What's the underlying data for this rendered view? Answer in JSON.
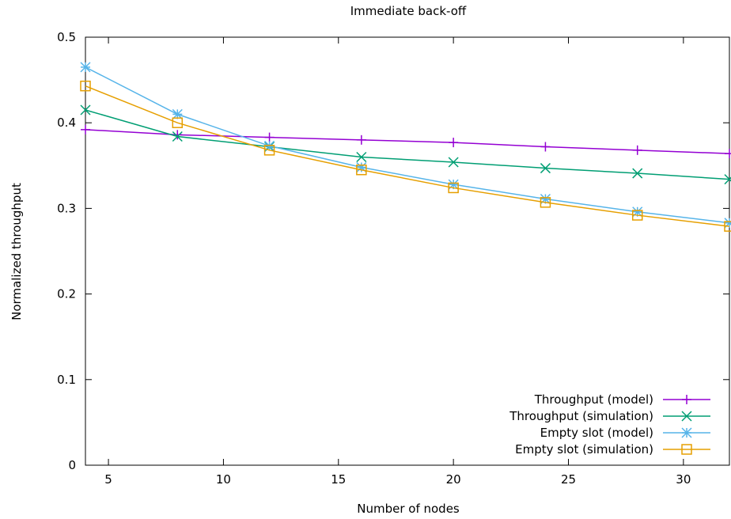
{
  "chart_data": {
    "type": "line",
    "title": "Immediate back-off",
    "xlabel": "Number of nodes",
    "ylabel": "Normalized throughput",
    "xlim": [
      4,
      32
    ],
    "ylim": [
      0,
      0.5
    ],
    "xticks": [
      5,
      10,
      15,
      20,
      25,
      30
    ],
    "yticks": [
      0,
      0.1,
      0.2,
      0.3,
      0.4,
      0.5
    ],
    "ytick_labels": [
      "0",
      "0.1",
      "0.2",
      "0.3",
      "0.4",
      "0.5"
    ],
    "grid": false,
    "legend_position": "bottom-right",
    "x": [
      4,
      8,
      12,
      16,
      20,
      24,
      28,
      32
    ],
    "series": [
      {
        "name": "Throughput (model)",
        "color": "#9400d3",
        "marker": "plus",
        "values": [
          0.392,
          0.386,
          0.383,
          0.38,
          0.377,
          0.372,
          0.368,
          0.364
        ]
      },
      {
        "name": "Throughput (simulation)",
        "color": "#009e73",
        "marker": "cross",
        "values": [
          0.415,
          0.384,
          0.372,
          0.36,
          0.354,
          0.347,
          0.341,
          0.334
        ]
      },
      {
        "name": "Empty slot (model)",
        "color": "#56b4e9",
        "marker": "asterisk",
        "values": [
          0.465,
          0.41,
          0.373,
          0.348,
          0.328,
          0.311,
          0.296,
          0.283
        ]
      },
      {
        "name": "Empty slot (simulation)",
        "color": "#e69f00",
        "marker": "square",
        "values": [
          0.443,
          0.4,
          0.368,
          0.345,
          0.324,
          0.307,
          0.292,
          0.279
        ]
      }
    ]
  }
}
